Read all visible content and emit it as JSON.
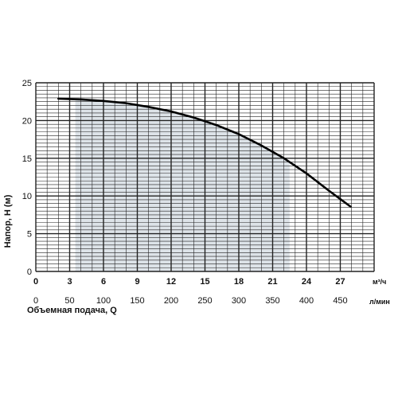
{
  "chart_data": {
    "type": "line",
    "ylabel": "Напор, H (м)",
    "xlabel": "Объемная подача, Q",
    "x_unit_primary": "м³/ч",
    "x_unit_secondary": "л/мин",
    "xlim": [
      0,
      30
    ],
    "ylim": [
      0,
      25
    ],
    "x_ticks_primary": [
      0,
      3,
      6,
      9,
      12,
      15,
      18,
      21,
      24,
      27
    ],
    "x_ticks_secondary": [
      0,
      50,
      100,
      150,
      200,
      250,
      300,
      350,
      400,
      450
    ],
    "y_ticks": [
      0,
      5,
      10,
      15,
      20,
      25
    ],
    "grid": true,
    "shaded_region": {
      "x_start": 3.5,
      "x_end": 22.5,
      "color": "#dde3e8"
    },
    "series": [
      {
        "x": [
          2.0,
          4.0,
          6.0,
          8.0,
          10.0,
          12.0,
          14.0,
          16.0,
          18.0,
          20.0,
          22.0,
          24.0,
          26.0,
          27.9
        ],
        "y": [
          22.9,
          22.8,
          22.6,
          22.3,
          21.8,
          21.2,
          20.4,
          19.4,
          18.2,
          16.7,
          15.0,
          13.0,
          10.7,
          8.6
        ],
        "color": "#000000"
      }
    ]
  }
}
